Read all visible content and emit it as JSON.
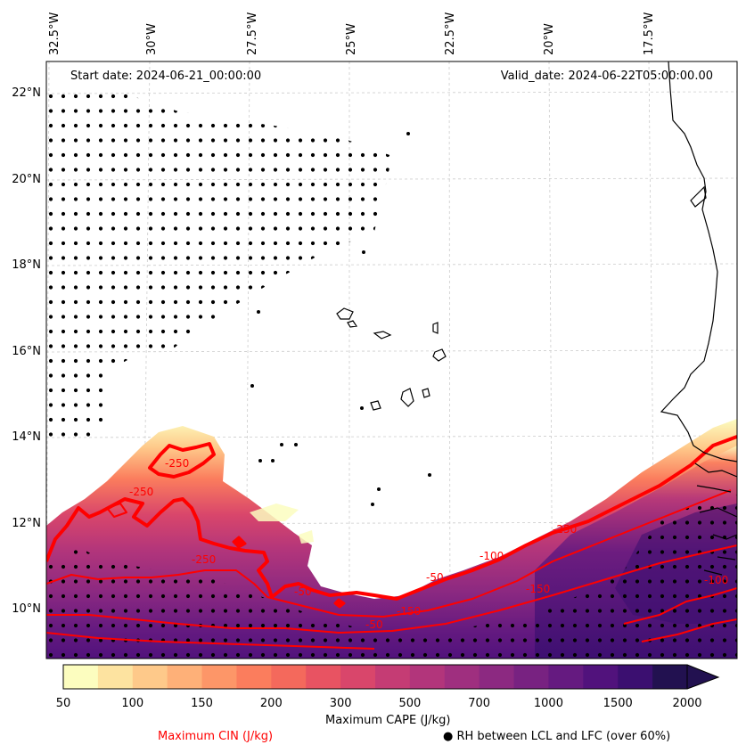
{
  "map": {
    "start_date": "Start date: 2024-06-21_00:00:00",
    "valid_date": "Valid_date: 2024-06-22T05:00:00.00",
    "lon_ticks": [
      "32.5°W",
      "30°W",
      "27.5°W",
      "25°W",
      "22.5°W",
      "20°W",
      "17.5°W"
    ],
    "lat_ticks": [
      "22°N",
      "20°N",
      "18°N",
      "16°N",
      "14°N",
      "12°N",
      "10°N"
    ],
    "cin_contour_labels": [
      "-250",
      "-250",
      "-250",
      "-50",
      "-100",
      "-50",
      "-150",
      "-50",
      "-150",
      "-100",
      "-250"
    ]
  },
  "colorbar": {
    "label": "Maximum CAPE (J/kg)",
    "ticks": [
      "50",
      "100",
      "150",
      "200",
      "300",
      "500",
      "700",
      "1000",
      "1500",
      "2000"
    ],
    "colors": [
      "#fcfdbf",
      "#fde3a0",
      "#fec98a",
      "#feb078",
      "#fd9668",
      "#fb7d5d",
      "#f4695c",
      "#e85362",
      "#d9466b",
      "#c53c74",
      "#b2357b",
      "#9f2f7f",
      "#8c2981",
      "#782281",
      "#651a80",
      "#51127c",
      "#3b0f70",
      "#221150"
    ],
    "extend": "max"
  },
  "legend": {
    "cin_label": "Maximum CIN (J/kg)",
    "cin_color": "#ff0000",
    "rh_label": "RH between LCL and LFC (over 60%)",
    "rh_marker": "●"
  }
}
